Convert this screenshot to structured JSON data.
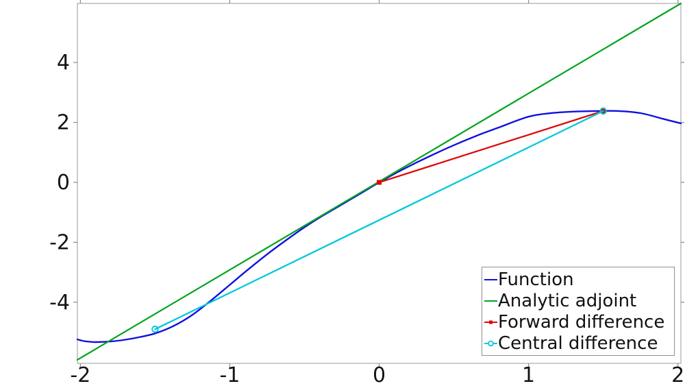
{
  "figure": {
    "background": "#ffffff",
    "frame_color": "#a9a9a9",
    "tick_color": "#8c8c8c",
    "tick_label_color": "#141414"
  },
  "chart_data": {
    "type": "line",
    "title": "",
    "xlabel": "",
    "ylabel": "",
    "xlim": [
      -2.02,
      2.02
    ],
    "ylim": [
      -6.04,
      5.97
    ],
    "xticks": [
      "-2",
      "-1",
      "0",
      "1",
      "2"
    ],
    "xtick_values": [
      -2,
      -1,
      0,
      1,
      2
    ],
    "yticks": [
      "4",
      "2",
      "0",
      "-2",
      "-4"
    ],
    "ytick_values": [
      4,
      2,
      0,
      -2,
      -4
    ],
    "grid": false,
    "legend_position": "bottom-right",
    "series": [
      {
        "name": "Function",
        "color": "#1010e0",
        "marker": "none",
        "line_width": 2.4,
        "points": [
          [
            -2.02,
            -5.24
          ],
          [
            -1.97,
            -5.3
          ],
          [
            -1.9,
            -5.33
          ],
          [
            -1.8,
            -5.31
          ],
          [
            -1.7,
            -5.25
          ],
          [
            -1.6,
            -5.16
          ],
          [
            -1.5,
            -5.04
          ],
          [
            -1.38,
            -4.8
          ],
          [
            -1.25,
            -4.42
          ],
          [
            -1.12,
            -3.92
          ],
          [
            -1.0,
            -3.42
          ],
          [
            -0.88,
            -2.92
          ],
          [
            -0.75,
            -2.4
          ],
          [
            -0.62,
            -1.92
          ],
          [
            -0.5,
            -1.5
          ],
          [
            -0.38,
            -1.12
          ],
          [
            -0.25,
            -0.74
          ],
          [
            -0.12,
            -0.36
          ],
          [
            0,
            0
          ],
          [
            0.12,
            0.33
          ],
          [
            0.25,
            0.66
          ],
          [
            0.38,
            0.97
          ],
          [
            0.5,
            1.24
          ],
          [
            0.65,
            1.55
          ],
          [
            0.8,
            1.83
          ],
          [
            1.0,
            2.19
          ],
          [
            1.15,
            2.31
          ],
          [
            1.3,
            2.36
          ],
          [
            1.45,
            2.38
          ],
          [
            1.6,
            2.38
          ],
          [
            1.75,
            2.31
          ],
          [
            1.9,
            2.12
          ],
          [
            2.02,
            1.97
          ]
        ]
      },
      {
        "name": "Analytic adjoint",
        "color": "#00a41e",
        "marker": "none",
        "line_width": 2.2,
        "points": [
          [
            -2.02,
            -5.92
          ],
          [
            2.02,
            5.97
          ]
        ]
      },
      {
        "name": "Forward difference",
        "color": "#dd0a0a",
        "marker": "square",
        "line_width": 2.3,
        "points": [
          [
            0,
            0
          ],
          [
            1.5,
            2.38
          ]
        ]
      },
      {
        "name": "Central difference",
        "color": "#00c8dc",
        "marker": "circle",
        "line_width": 2.3,
        "points": [
          [
            -1.5,
            -4.9
          ],
          [
            1.5,
            2.38
          ]
        ]
      }
    ]
  }
}
